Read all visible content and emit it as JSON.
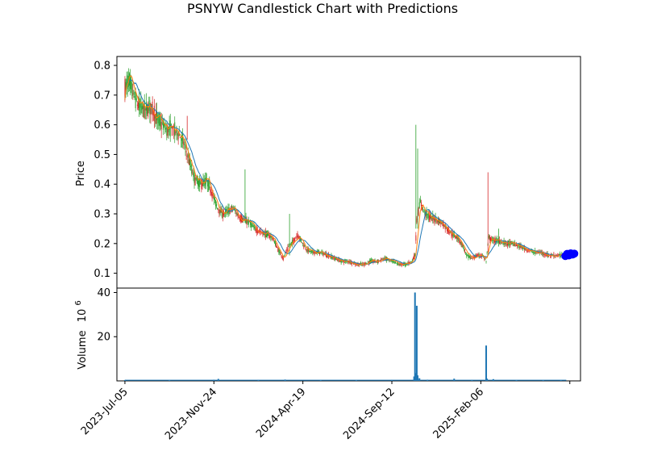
{
  "chart_data": {
    "type": "candlestick",
    "title": "PSNYW Candlestick Chart with Predictions",
    "price_panel": {
      "ylabel": "Price",
      "ylim": [
        0.05,
        0.83
      ],
      "yticks": [
        0.1,
        0.2,
        0.3,
        0.4,
        0.5,
        0.6,
        0.7,
        0.8
      ],
      "ytick_labels": [
        "0.1",
        "0.2",
        "0.3",
        "0.4",
        "0.5",
        "0.6",
        "0.7",
        "0.8"
      ],
      "price_series": [
        [
          0,
          0.72
        ],
        [
          4,
          0.75
        ],
        [
          10,
          0.7
        ],
        [
          14,
          0.67
        ],
        [
          22,
          0.65
        ],
        [
          30,
          0.66
        ],
        [
          36,
          0.62
        ],
        [
          42,
          0.6
        ],
        [
          48,
          0.58
        ],
        [
          52,
          0.59
        ],
        [
          60,
          0.57
        ],
        [
          66,
          0.54
        ],
        [
          72,
          0.48
        ],
        [
          78,
          0.42
        ],
        [
          84,
          0.4
        ],
        [
          92,
          0.41
        ],
        [
          98,
          0.37
        ],
        [
          104,
          0.32
        ],
        [
          110,
          0.3
        ],
        [
          116,
          0.31
        ],
        [
          122,
          0.32
        ],
        [
          128,
          0.29
        ],
        [
          134,
          0.28
        ],
        [
          140,
          0.27
        ],
        [
          146,
          0.25
        ],
        [
          152,
          0.24
        ],
        [
          160,
          0.23
        ],
        [
          166,
          0.22
        ],
        [
          172,
          0.18
        ],
        [
          178,
          0.15
        ],
        [
          184,
          0.19
        ],
        [
          190,
          0.21
        ],
        [
          194,
          0.23
        ],
        [
          198,
          0.21
        ],
        [
          204,
          0.18
        ],
        [
          212,
          0.17
        ],
        [
          220,
          0.17
        ],
        [
          228,
          0.16
        ],
        [
          236,
          0.15
        ],
        [
          244,
          0.14
        ],
        [
          252,
          0.14
        ],
        [
          260,
          0.13
        ],
        [
          268,
          0.13
        ],
        [
          276,
          0.14
        ],
        [
          284,
          0.14
        ],
        [
          292,
          0.15
        ],
        [
          300,
          0.14
        ],
        [
          308,
          0.13
        ],
        [
          316,
          0.13
        ],
        [
          322,
          0.14
        ],
        [
          326,
          0.16
        ],
        [
          328,
          0.28
        ],
        [
          332,
          0.34
        ],
        [
          336,
          0.31
        ],
        [
          342,
          0.29
        ],
        [
          350,
          0.28
        ],
        [
          356,
          0.27
        ],
        [
          362,
          0.25
        ],
        [
          368,
          0.23
        ],
        [
          374,
          0.22
        ],
        [
          380,
          0.19
        ],
        [
          384,
          0.16
        ],
        [
          390,
          0.15
        ],
        [
          396,
          0.16
        ],
        [
          402,
          0.16
        ],
        [
          406,
          0.14
        ],
        [
          409,
          0.22
        ],
        [
          414,
          0.21
        ],
        [
          420,
          0.21
        ],
        [
          428,
          0.2
        ],
        [
          436,
          0.2
        ],
        [
          444,
          0.19
        ],
        [
          452,
          0.18
        ],
        [
          460,
          0.17
        ],
        [
          468,
          0.17
        ],
        [
          476,
          0.16
        ],
        [
          484,
          0.16
        ],
        [
          490,
          0.16
        ],
        [
          496,
          0.16
        ]
      ],
      "spikes": [
        {
          "day": 70,
          "high": 0.63,
          "low": 0.55
        },
        {
          "day": 135,
          "high": 0.45,
          "low": 0.27
        },
        {
          "day": 185,
          "high": 0.3,
          "low": 0.16
        },
        {
          "day": 327,
          "high": 0.6,
          "low": 0.25
        },
        {
          "day": 329,
          "high": 0.52,
          "low": 0.25
        },
        {
          "day": 408,
          "high": 0.44,
          "low": 0.17
        },
        {
          "day": 420,
          "high": 0.25,
          "low": 0.19
        }
      ],
      "prediction_points": [
        {
          "day": 495,
          "value": 0.158
        },
        {
          "day": 497,
          "value": 0.165
        },
        {
          "day": 499,
          "value": 0.16
        },
        {
          "day": 501,
          "value": 0.167
        },
        {
          "day": 503,
          "value": 0.163
        },
        {
          "day": 505,
          "value": 0.166
        }
      ],
      "colors": {
        "up": "#2ca02c",
        "down": "#d62728",
        "ma_short": "#ff7f0e",
        "ma_long": "#1f77b4",
        "prediction": "#0000ff"
      }
    },
    "volume_panel": {
      "ylabel": "Volume",
      "ylabel_unit": "10",
      "ylabel_unit_exp": "6",
      "ylim": [
        0,
        42
      ],
      "yticks": [
        20,
        40
      ],
      "ytick_labels": [
        "20",
        "40"
      ],
      "bars": [
        {
          "day": 0,
          "value": 0.4
        },
        {
          "day": 50,
          "value": 0.3
        },
        {
          "day": 100,
          "value": 0.5
        },
        {
          "day": 105,
          "value": 0.9
        },
        {
          "day": 150,
          "value": 0.4
        },
        {
          "day": 180,
          "value": 0.6
        },
        {
          "day": 220,
          "value": 0.3
        },
        {
          "day": 260,
          "value": 0.3
        },
        {
          "day": 300,
          "value": 0.4
        },
        {
          "day": 325,
          "value": 2.0
        },
        {
          "day": 326,
          "value": 40.0
        },
        {
          "day": 327,
          "value": 3.5
        },
        {
          "day": 328,
          "value": 34.0
        },
        {
          "day": 329,
          "value": 2.5
        },
        {
          "day": 331,
          "value": 1.2
        },
        {
          "day": 340,
          "value": 0.5
        },
        {
          "day": 370,
          "value": 1.0
        },
        {
          "day": 390,
          "value": 0.4
        },
        {
          "day": 406,
          "value": 16.0
        },
        {
          "day": 407,
          "value": 1.0
        },
        {
          "day": 414,
          "value": 0.8
        },
        {
          "day": 440,
          "value": 0.3
        },
        {
          "day": 470,
          "value": 0.3
        },
        {
          "day": 490,
          "value": 0.3
        }
      ],
      "color": "#1f77b4"
    },
    "x_axis": {
      "range_days": [
        -9,
        512
      ],
      "tick_days": [
        0,
        100,
        200,
        300,
        400,
        500
      ],
      "tick_labels": [
        "2023-Jul-05",
        "2023-Nov-24",
        "2024-Apr-19",
        "2024-Sep-12",
        "2025-Feb-06",
        ""
      ]
    }
  }
}
